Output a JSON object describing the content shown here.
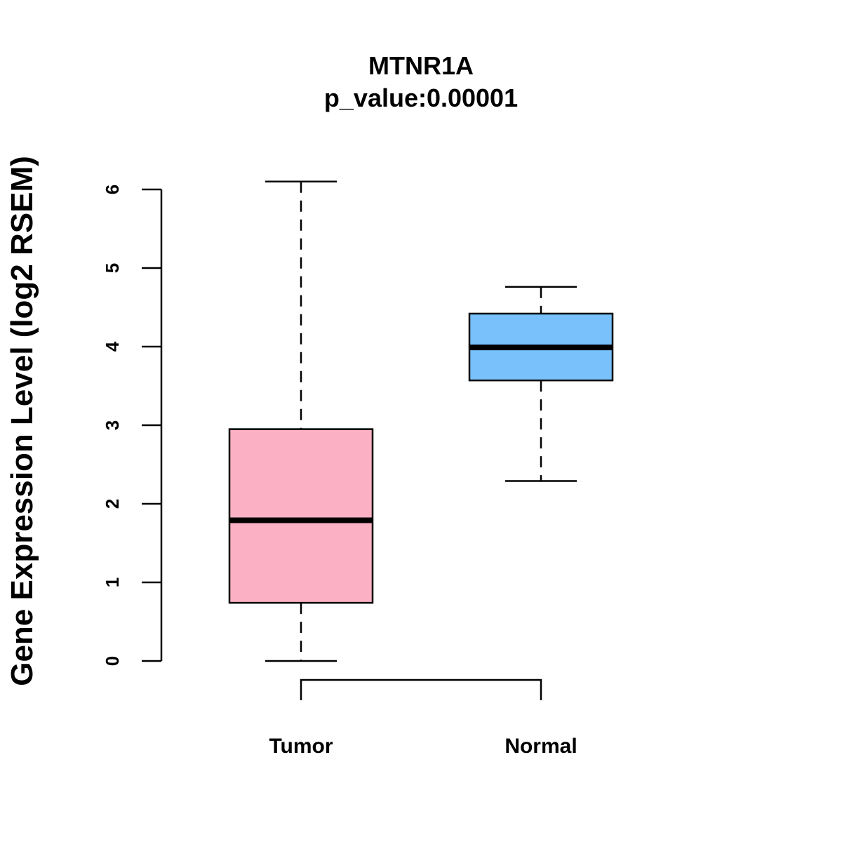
{
  "chart_data": {
    "type": "boxplot",
    "title": "MTNR1A",
    "subtitle": "p_value:0.00001",
    "xlabel": "",
    "ylabel": "Gene Expression Level (log2 RSEM)",
    "ylim": [
      0,
      6
    ],
    "yticks": [
      "0",
      "1",
      "2",
      "3",
      "4",
      "5",
      "6"
    ],
    "categories": [
      "Tumor",
      "Normal"
    ],
    "boxes": [
      {
        "name": "Tumor",
        "min": 0.0,
        "q1": 0.74,
        "median": 1.79,
        "q3": 2.95,
        "max": 6.1,
        "color": "#FBB1C3"
      },
      {
        "name": "Normal",
        "min": 2.29,
        "q1": 3.57,
        "median": 3.99,
        "q3": 4.42,
        "max": 4.76,
        "color": "#78C1FA"
      }
    ],
    "comparison_bracket": [
      "Tumor",
      "Normal"
    ]
  }
}
